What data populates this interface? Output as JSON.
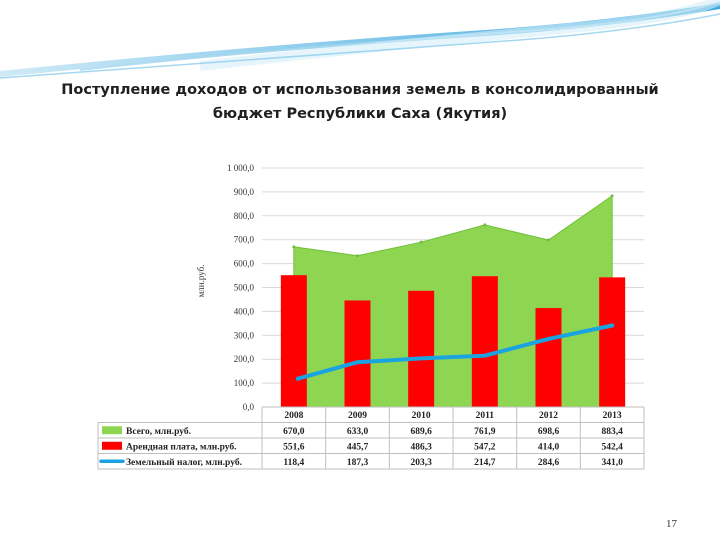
{
  "slide": {
    "title_line1": "Поступление доходов от использования земель в консолидированный",
    "title_line2": "бюджет Республики Саха (Якутия)",
    "page_number": "17"
  },
  "colors": {
    "total": "#8ed552",
    "rent": "#ff0000",
    "tax": "#1aa3e0",
    "header_wave": "#5ab8e6"
  },
  "chart_data": {
    "type": "bar",
    "ylabel": "млн.руб.",
    "ylim": [
      0,
      1000
    ],
    "ytick_step": 100,
    "ytick_labels": [
      "0,0",
      "100,0",
      "200,0",
      "300,0",
      "400,0",
      "500,0",
      "600,0",
      "700,0",
      "800,0",
      "900,0",
      "1 000,0"
    ],
    "grid": true,
    "categories": [
      "2008",
      "2009",
      "2010",
      "2011",
      "2012",
      "2013"
    ],
    "series": [
      {
        "name": "Всего, млн.руб.",
        "kind": "area",
        "values": [
          670.0,
          633.0,
          689.6,
          761.9,
          698.6,
          883.4
        ],
        "labels": [
          "670,0",
          "633,0",
          "689,6",
          "761,9",
          "698,6",
          "883,4"
        ]
      },
      {
        "name": "Арендная плата, млн.руб.",
        "kind": "bar",
        "values": [
          551.6,
          445.7,
          486.3,
          547.2,
          414.0,
          542.4
        ],
        "labels": [
          "551,6",
          "445,7",
          "486,3",
          "547,2",
          "414,0",
          "542,4"
        ]
      },
      {
        "name": "Земельный налог, млн.руб.",
        "kind": "line",
        "values": [
          118.4,
          187.3,
          203.3,
          214.7,
          284.6,
          341.0
        ],
        "labels": [
          "118,4",
          "187,3",
          "203,3",
          "214,7",
          "284,6",
          "341,0"
        ]
      }
    ]
  }
}
